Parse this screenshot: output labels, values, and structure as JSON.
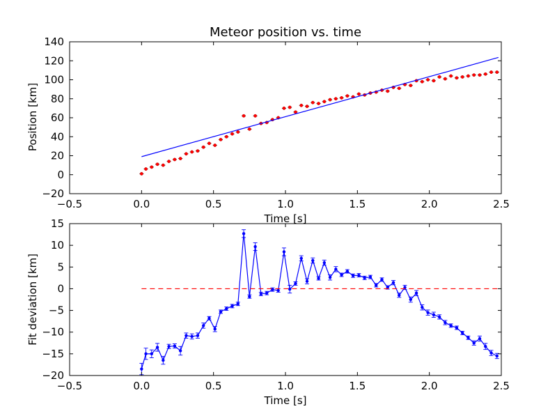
{
  "chart_data": [
    {
      "type": "scatter",
      "title": "Meteor position vs. time",
      "xlabel": "Time [s]",
      "ylabel": "Position [km]",
      "xlim": [
        -0.5,
        2.5
      ],
      "ylim": [
        -20,
        140
      ],
      "xticks": [
        -0.5,
        0.0,
        0.5,
        1.0,
        1.5,
        2.0,
        2.5
      ],
      "xtick_labels": [
        "−0.5",
        "0.0",
        "0.5",
        "1.0",
        "1.5",
        "2.0",
        "2.5"
      ],
      "yticks": [
        -20,
        0,
        20,
        40,
        60,
        80,
        100,
        120,
        140
      ],
      "ytick_labels": [
        "−20",
        "0",
        "20",
        "40",
        "60",
        "80",
        "100",
        "120",
        "140"
      ],
      "grid": false,
      "series": [
        {
          "kind": "points-with-error",
          "color": "#ff0000",
          "yerr": 1,
          "x": [
            0.0,
            0.03,
            0.07,
            0.11,
            0.15,
            0.19,
            0.23,
            0.27,
            0.31,
            0.35,
            0.39,
            0.43,
            0.47,
            0.51,
            0.55,
            0.59,
            0.63,
            0.67,
            0.71,
            0.75,
            0.79,
            0.83,
            0.87,
            0.91,
            0.95,
            0.99,
            1.03,
            1.07,
            1.11,
            1.15,
            1.19,
            1.23,
            1.27,
            1.31,
            1.35,
            1.39,
            1.43,
            1.47,
            1.51,
            1.55,
            1.59,
            1.63,
            1.67,
            1.71,
            1.75,
            1.79,
            1.83,
            1.87,
            1.91,
            1.95,
            1.99,
            2.03,
            2.07,
            2.11,
            2.15,
            2.19,
            2.23,
            2.27,
            2.31,
            2.35,
            2.39,
            2.43,
            2.47
          ],
          "y": [
            1,
            6,
            8,
            11,
            10,
            14,
            16,
            17,
            22,
            24,
            25,
            29,
            33,
            31,
            37,
            40,
            43,
            45,
            62,
            48,
            62,
            54,
            55,
            58,
            60,
            70,
            71,
            66,
            73,
            72,
            76,
            75,
            77,
            79,
            80,
            81,
            83,
            82,
            85,
            84,
            86,
            87,
            89,
            88,
            92,
            91,
            95,
            94,
            99,
            98,
            100,
            99,
            103,
            101,
            104,
            102,
            103,
            104,
            105,
            105,
            106,
            108,
            108
          ]
        },
        {
          "kind": "fit-line",
          "color": "#0000ff",
          "x": [
            0.0,
            2.48
          ],
          "y": [
            19,
            123.5
          ]
        }
      ]
    },
    {
      "type": "line",
      "xlabel": "Time [s]",
      "ylabel": "Fit deviation [km]",
      "xlim": [
        -0.5,
        2.5
      ],
      "ylim": [
        -20,
        15
      ],
      "xticks": [
        -0.5,
        0.0,
        0.5,
        1.0,
        1.5,
        2.0,
        2.5
      ],
      "xtick_labels": [
        "−0.5",
        "0.0",
        "0.5",
        "1.0",
        "1.5",
        "2.0",
        "2.5"
      ],
      "yticks": [
        -20,
        -15,
        -10,
        -5,
        0,
        5,
        10,
        15
      ],
      "ytick_labels": [
        "−20",
        "−15",
        "−10",
        "−5",
        "0",
        "5",
        "10",
        "15"
      ],
      "grid": false,
      "series": [
        {
          "kind": "line-with-error",
          "color": "#0000ff",
          "x": [
            0.0,
            0.03,
            0.07,
            0.11,
            0.15,
            0.19,
            0.23,
            0.27,
            0.31,
            0.35,
            0.39,
            0.43,
            0.47,
            0.51,
            0.55,
            0.59,
            0.63,
            0.67,
            0.71,
            0.75,
            0.79,
            0.83,
            0.87,
            0.91,
            0.95,
            0.99,
            1.03,
            1.07,
            1.11,
            1.15,
            1.19,
            1.23,
            1.27,
            1.31,
            1.35,
            1.39,
            1.43,
            1.47,
            1.51,
            1.55,
            1.59,
            1.63,
            1.67,
            1.71,
            1.75,
            1.79,
            1.83,
            1.87,
            1.91,
            1.95,
            1.99,
            2.03,
            2.07,
            2.11,
            2.15,
            2.19,
            2.23,
            2.27,
            2.31,
            2.35,
            2.39,
            2.43,
            2.47
          ],
          "y": [
            -18.5,
            -15,
            -15,
            -13.5,
            -16.5,
            -13.3,
            -13.2,
            -14.3,
            -10.8,
            -11,
            -10.8,
            -8.5,
            -6.8,
            -9.3,
            -5.3,
            -4.6,
            -4,
            -3.5,
            12.7,
            -1.8,
            9.7,
            -1.2,
            -1,
            -0.2,
            -0.4,
            8.5,
            -0.1,
            1.2,
            7,
            1.7,
            6.5,
            2.4,
            6,
            2.6,
            4.5,
            3.2,
            4,
            3,
            3.1,
            2.5,
            2.7,
            0.8,
            2.1,
            0.3,
            1.4,
            -1.5,
            0.3,
            -2.5,
            -1,
            -4.3,
            -5.5,
            -6,
            -6.5,
            -7.8,
            -8.5,
            -9,
            -10.2,
            -11.3,
            -12.5,
            -11.5,
            -13.3,
            -14.8,
            -15.5
          ],
          "yerr": [
            1.3,
            1.3,
            0.9,
            0.9,
            0.9,
            0.5,
            0.5,
            1.0,
            0.6,
            0.6,
            0.6,
            0.6,
            0.4,
            0.6,
            0.4,
            0.4,
            0.4,
            0.4,
            0.9,
            0.4,
            0.9,
            0.4,
            0.4,
            0.4,
            0.4,
            0.9,
            0.9,
            0.4,
            0.6,
            0.6,
            0.6,
            0.4,
            0.6,
            0.6,
            0.6,
            0.4,
            0.4,
            0.4,
            0.4,
            0.4,
            0.4,
            0.4,
            0.4,
            0.4,
            0.5,
            0.5,
            0.5,
            0.6,
            0.6,
            0.6,
            0.6,
            0.6,
            0.5,
            0.5,
            0.4,
            0.4,
            0.4,
            0.4,
            0.5,
            0.6,
            0.7,
            0.6,
            0.6
          ]
        },
        {
          "kind": "reference-line",
          "color": "#ff0000",
          "style": "dashed",
          "x": [
            0.0,
            2.48
          ],
          "y": [
            0,
            0
          ]
        }
      ]
    }
  ]
}
